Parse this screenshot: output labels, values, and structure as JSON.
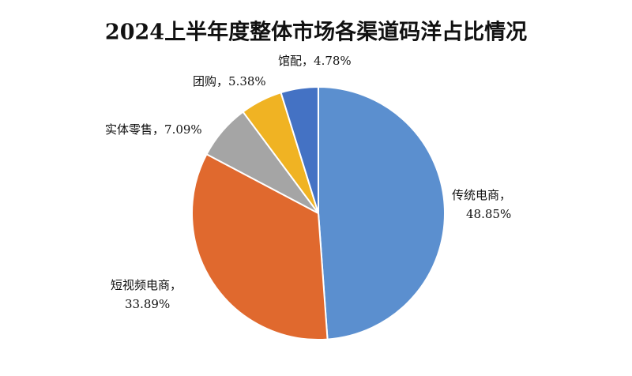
{
  "chart_data": {
    "type": "pie",
    "title": "2024上半年度整体市场各渠道码洋占比情况",
    "categories": [
      "传统电商",
      "短视频电商",
      "实体零售",
      "团购",
      "馆配"
    ],
    "label_separator": "，",
    "values": [
      48.85,
      33.89,
      7.09,
      5.38,
      4.78
    ],
    "value_labels": [
      "48.85%",
      "33.89%",
      "7.09%",
      "5.38%",
      "4.78%"
    ],
    "colors": [
      "#5b8fcf",
      "#e0692e",
      "#a5a5a5",
      "#f0b323",
      "#4472c4"
    ]
  }
}
